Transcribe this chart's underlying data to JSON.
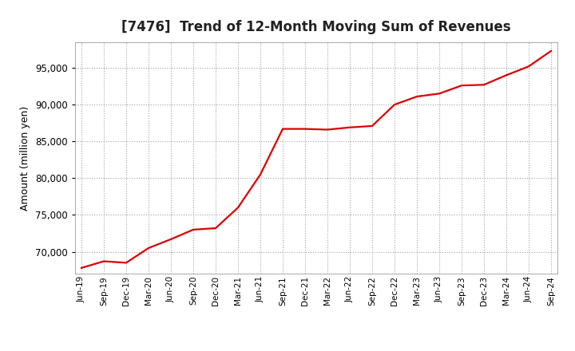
{
  "title": "[7476]  Trend of 12-Month Moving Sum of Revenues",
  "ylabel": "Amount (million yen)",
  "line_color": "#dd0000",
  "line_width": 1.6,
  "background_color": "#ffffff",
  "plot_bg_color": "#ffffff",
  "grid_color": "#999999",
  "ylim": [
    67000,
    98500
  ],
  "yticks": [
    70000,
    75000,
    80000,
    85000,
    90000,
    95000
  ],
  "x_labels": [
    "Jun-19",
    "Sep-19",
    "Dec-19",
    "Mar-20",
    "Jun-20",
    "Sep-20",
    "Dec-20",
    "Mar-21",
    "Jun-21",
    "Sep-21",
    "Dec-21",
    "Mar-22",
    "Jun-22",
    "Sep-22",
    "Dec-22",
    "Mar-23",
    "Jun-23",
    "Sep-23",
    "Dec-23",
    "Mar-24",
    "Jun-24",
    "Sep-24"
  ],
  "values": [
    67800,
    68700,
    68500,
    70500,
    71700,
    73000,
    73200,
    76000,
    80500,
    86700,
    86700,
    86600,
    86900,
    87100,
    90000,
    91100,
    91500,
    92600,
    92700,
    94000,
    95200,
    97300
  ],
  "title_fontsize": 12,
  "ylabel_fontsize": 9,
  "tick_fontsize": 8.5,
  "xtick_fontsize": 7.5
}
